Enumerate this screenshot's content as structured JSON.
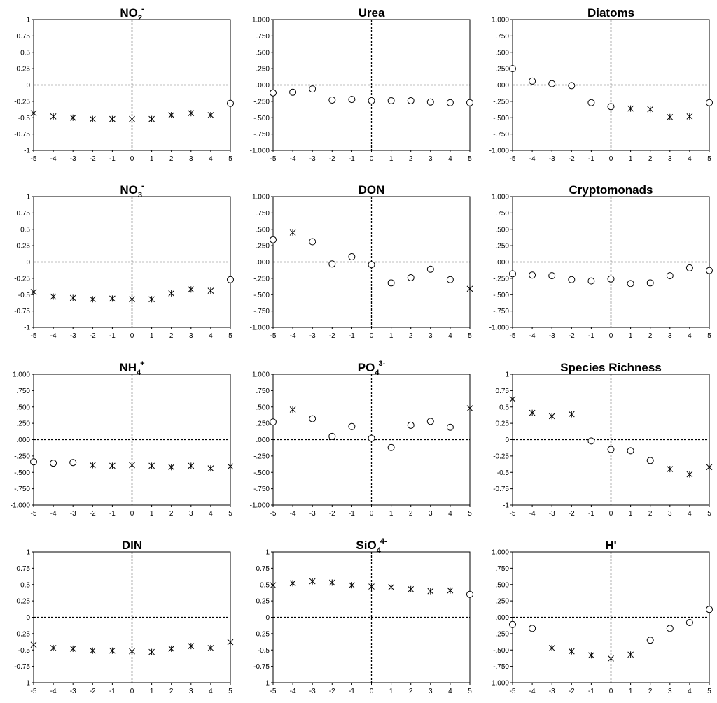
{
  "chart_data": [
    {
      "type": "scatter",
      "title": "NO",
      "title_sub": "2",
      "title_sup": "-",
      "ylim": [
        -1,
        1
      ],
      "yticks": [
        "1",
        "0.75",
        "0.5",
        "0.25",
        "0",
        "-0.25",
        "-0.5",
        "-0.75",
        "-1"
      ],
      "xticks": [
        "-5",
        "-4",
        "-3",
        "-2",
        "-1",
        "0",
        "1",
        "2",
        "3",
        "4",
        "5"
      ],
      "points": [
        {
          "x": -5,
          "y": -0.43,
          "m": "x"
        },
        {
          "x": -4,
          "y": -0.48,
          "m": "x"
        },
        {
          "x": -3,
          "y": -0.5,
          "m": "x"
        },
        {
          "x": -2,
          "y": -0.52,
          "m": "x"
        },
        {
          "x": -1,
          "y": -0.52,
          "m": "x"
        },
        {
          "x": 0,
          "y": -0.52,
          "m": "x"
        },
        {
          "x": 1,
          "y": -0.52,
          "m": "x"
        },
        {
          "x": 2,
          "y": -0.46,
          "m": "x"
        },
        {
          "x": 3,
          "y": -0.43,
          "m": "x"
        },
        {
          "x": 4,
          "y": -0.46,
          "m": "x"
        },
        {
          "x": 5,
          "y": -0.28,
          "m": "o"
        }
      ]
    },
    {
      "type": "scatter",
      "title": "Urea",
      "title_sub": "",
      "title_sup": "",
      "ylim": [
        -1,
        1
      ],
      "yticks": [
        "1.000",
        ".750",
        ".500",
        ".250",
        ".000",
        "-.250",
        "-.500",
        "-.750",
        "-1.000"
      ],
      "xticks": [
        "-5",
        "-4",
        "-3",
        "-2",
        "-1",
        "0",
        "1",
        "2",
        "3",
        "4",
        "5"
      ],
      "points": [
        {
          "x": -5,
          "y": -0.12,
          "m": "o"
        },
        {
          "x": -4,
          "y": -0.11,
          "m": "o"
        },
        {
          "x": -3,
          "y": -0.06,
          "m": "o"
        },
        {
          "x": -2,
          "y": -0.23,
          "m": "o"
        },
        {
          "x": -1,
          "y": -0.22,
          "m": "o"
        },
        {
          "x": 0,
          "y": -0.24,
          "m": "o"
        },
        {
          "x": 1,
          "y": -0.24,
          "m": "o"
        },
        {
          "x": 2,
          "y": -0.24,
          "m": "o"
        },
        {
          "x": 3,
          "y": -0.26,
          "m": "o"
        },
        {
          "x": 4,
          "y": -0.27,
          "m": "o"
        },
        {
          "x": 5,
          "y": -0.27,
          "m": "o"
        }
      ]
    },
    {
      "type": "scatter",
      "title": "Diatoms",
      "title_sub": "",
      "title_sup": "",
      "ylim": [
        -1,
        1
      ],
      "yticks": [
        "1.000",
        ".750",
        ".500",
        ".250",
        ".000",
        "-.250",
        "-.500",
        "-.750",
        "-1.000"
      ],
      "xticks": [
        "-5",
        "-4",
        "-3",
        "-2",
        "-1",
        "0",
        "1",
        "2",
        "3",
        "4",
        "5"
      ],
      "points": [
        {
          "x": -5,
          "y": 0.25,
          "m": "o"
        },
        {
          "x": -4,
          "y": 0.06,
          "m": "o"
        },
        {
          "x": -3,
          "y": 0.02,
          "m": "o"
        },
        {
          "x": -2,
          "y": -0.01,
          "m": "o"
        },
        {
          "x": -1,
          "y": -0.27,
          "m": "o"
        },
        {
          "x": 0,
          "y": -0.33,
          "m": "o"
        },
        {
          "x": 1,
          "y": -0.36,
          "m": "x"
        },
        {
          "x": 2,
          "y": -0.37,
          "m": "x"
        },
        {
          "x": 3,
          "y": -0.49,
          "m": "x"
        },
        {
          "x": 4,
          "y": -0.48,
          "m": "x"
        },
        {
          "x": 5,
          "y": -0.27,
          "m": "o"
        }
      ]
    },
    {
      "type": "scatter",
      "title": "NO",
      "title_sub": "3",
      "title_sup": "-",
      "ylim": [
        -1,
        1
      ],
      "yticks": [
        "1",
        "0.75",
        "0.5",
        "0.25",
        "0",
        "-0.25",
        "-0.5",
        "-0.75",
        "-1"
      ],
      "xticks": [
        "-5",
        "-4",
        "-3",
        "-2",
        "-1",
        "0",
        "1",
        "2",
        "3",
        "4",
        "5"
      ],
      "points": [
        {
          "x": -5,
          "y": -0.46,
          "m": "x"
        },
        {
          "x": -4,
          "y": -0.53,
          "m": "x"
        },
        {
          "x": -3,
          "y": -0.55,
          "m": "x"
        },
        {
          "x": -2,
          "y": -0.57,
          "m": "x"
        },
        {
          "x": -1,
          "y": -0.56,
          "m": "x"
        },
        {
          "x": 0,
          "y": -0.57,
          "m": "x"
        },
        {
          "x": 1,
          "y": -0.57,
          "m": "x"
        },
        {
          "x": 2,
          "y": -0.48,
          "m": "x"
        },
        {
          "x": 3,
          "y": -0.42,
          "m": "x"
        },
        {
          "x": 4,
          "y": -0.44,
          "m": "x"
        },
        {
          "x": 5,
          "y": -0.27,
          "m": "o"
        }
      ]
    },
    {
      "type": "scatter",
      "title": "DON",
      "title_sub": "",
      "title_sup": "",
      "ylim": [
        -1,
        1
      ],
      "yticks": [
        "1.000",
        ".750",
        ".500",
        ".250",
        ".000",
        "-.250",
        "-.500",
        "-.750",
        "-1.000"
      ],
      "xticks": [
        "-5",
        "-4",
        "-3",
        "-2",
        "-1",
        "0",
        "1",
        "2",
        "3",
        "4",
        "5"
      ],
      "points": [
        {
          "x": -5,
          "y": 0.34,
          "m": "o"
        },
        {
          "x": -4,
          "y": 0.45,
          "m": "x"
        },
        {
          "x": -3,
          "y": 0.31,
          "m": "o"
        },
        {
          "x": -2,
          "y": -0.03,
          "m": "o"
        },
        {
          "x": -1,
          "y": 0.08,
          "m": "o"
        },
        {
          "x": 0,
          "y": -0.04,
          "m": "o"
        },
        {
          "x": 1,
          "y": -0.32,
          "m": "o"
        },
        {
          "x": 2,
          "y": -0.24,
          "m": "o"
        },
        {
          "x": 3,
          "y": -0.11,
          "m": "o"
        },
        {
          "x": 4,
          "y": -0.27,
          "m": "o"
        },
        {
          "x": 5,
          "y": -0.41,
          "m": "x"
        }
      ]
    },
    {
      "type": "scatter",
      "title": "Cryptomonads",
      "title_sub": "",
      "title_sup": "",
      "ylim": [
        -1,
        1
      ],
      "yticks": [
        "1.000",
        ".750",
        ".500",
        ".250",
        ".000",
        "-.250",
        "-.500",
        "-.750",
        "-1.000"
      ],
      "xticks": [
        "-5",
        "-4",
        "-3",
        "-2",
        "-1",
        "0",
        "1",
        "2",
        "3",
        "4",
        "5"
      ],
      "points": [
        {
          "x": -5,
          "y": -0.18,
          "m": "o"
        },
        {
          "x": -4,
          "y": -0.2,
          "m": "o"
        },
        {
          "x": -3,
          "y": -0.21,
          "m": "o"
        },
        {
          "x": -2,
          "y": -0.27,
          "m": "o"
        },
        {
          "x": -1,
          "y": -0.29,
          "m": "o"
        },
        {
          "x": 0,
          "y": -0.26,
          "m": "o"
        },
        {
          "x": 1,
          "y": -0.33,
          "m": "o"
        },
        {
          "x": 2,
          "y": -0.32,
          "m": "o"
        },
        {
          "x": 3,
          "y": -0.21,
          "m": "o"
        },
        {
          "x": 4,
          "y": -0.09,
          "m": "o"
        },
        {
          "x": 5,
          "y": -0.13,
          "m": "o"
        }
      ]
    },
    {
      "type": "scatter",
      "title": "NH",
      "title_sub": "4",
      "title_sup": "+",
      "ylim": [
        -1,
        1
      ],
      "yticks": [
        "1.000",
        ".750",
        ".500",
        ".250",
        ".000",
        "-.250",
        "-.500",
        "-.750",
        "-1.000"
      ],
      "xticks": [
        "-5",
        "-4",
        "-3",
        "-2",
        "-1",
        "0",
        "1",
        "2",
        "3",
        "4",
        "5"
      ],
      "points": [
        {
          "x": -5,
          "y": -0.34,
          "m": "o"
        },
        {
          "x": -4,
          "y": -0.36,
          "m": "o"
        },
        {
          "x": -3,
          "y": -0.35,
          "m": "o"
        },
        {
          "x": -2,
          "y": -0.39,
          "m": "x"
        },
        {
          "x": -1,
          "y": -0.4,
          "m": "x"
        },
        {
          "x": 0,
          "y": -0.39,
          "m": "x"
        },
        {
          "x": 1,
          "y": -0.4,
          "m": "x"
        },
        {
          "x": 2,
          "y": -0.42,
          "m": "x"
        },
        {
          "x": 3,
          "y": -0.4,
          "m": "x"
        },
        {
          "x": 4,
          "y": -0.44,
          "m": "x"
        },
        {
          "x": 5,
          "y": -0.41,
          "m": "x"
        }
      ]
    },
    {
      "type": "scatter",
      "title": "PO",
      "title_sub": "4",
      "title_sup": "3-",
      "ylim": [
        -1,
        1
      ],
      "yticks": [
        "1.000",
        ".750",
        ".500",
        ".250",
        ".000",
        "-.250",
        "-.500",
        "-.750",
        "-1.000"
      ],
      "xticks": [
        "-5",
        "-4",
        "-3",
        "-2",
        "-1",
        "0",
        "1",
        "2",
        "3",
        "4",
        "5"
      ],
      "points": [
        {
          "x": -5,
          "y": 0.27,
          "m": "o"
        },
        {
          "x": -4,
          "y": 0.46,
          "m": "x"
        },
        {
          "x": -3,
          "y": 0.32,
          "m": "o"
        },
        {
          "x": -2,
          "y": 0.05,
          "m": "o"
        },
        {
          "x": -1,
          "y": 0.2,
          "m": "o"
        },
        {
          "x": 0,
          "y": 0.02,
          "m": "o"
        },
        {
          "x": 1,
          "y": -0.12,
          "m": "o"
        },
        {
          "x": 2,
          "y": 0.22,
          "m": "o"
        },
        {
          "x": 3,
          "y": 0.28,
          "m": "o"
        },
        {
          "x": 4,
          "y": 0.19,
          "m": "o"
        },
        {
          "x": 5,
          "y": 0.48,
          "m": "x"
        }
      ]
    },
    {
      "type": "scatter",
      "title": "Species Richness",
      "title_sub": "",
      "title_sup": "",
      "ylim": [
        -1,
        1
      ],
      "yticks": [
        "1",
        "0.75",
        "0.5",
        "0.25",
        "0",
        "-0.25",
        "-0.5",
        "-0.75",
        "-1"
      ],
      "xticks": [
        "-5",
        "-4",
        "-3",
        "-2",
        "-1",
        "0",
        "1",
        "2",
        "3",
        "4",
        "5"
      ],
      "points": [
        {
          "x": -5,
          "y": 0.62,
          "m": "x"
        },
        {
          "x": -4,
          "y": 0.41,
          "m": "x"
        },
        {
          "x": -3,
          "y": 0.36,
          "m": "x"
        },
        {
          "x": -2,
          "y": 0.39,
          "m": "x"
        },
        {
          "x": -1,
          "y": -0.02,
          "m": "o"
        },
        {
          "x": 0,
          "y": -0.15,
          "m": "o"
        },
        {
          "x": 1,
          "y": -0.17,
          "m": "o"
        },
        {
          "x": 2,
          "y": -0.32,
          "m": "o"
        },
        {
          "x": 3,
          "y": -0.45,
          "m": "x"
        },
        {
          "x": 4,
          "y": -0.53,
          "m": "x"
        },
        {
          "x": 5,
          "y": -0.42,
          "m": "x"
        }
      ]
    },
    {
      "type": "scatter",
      "title": "DIN",
      "title_sub": "",
      "title_sup": "",
      "ylim": [
        -1,
        1
      ],
      "yticks": [
        "1",
        "0.75",
        "0.5",
        "0.25",
        "0",
        "-0.25",
        "-0.5",
        "-0.75",
        "-1"
      ],
      "xticks": [
        "-5",
        "-4",
        "-3",
        "-2",
        "-1",
        "0",
        "1",
        "2",
        "3",
        "4",
        "5"
      ],
      "points": [
        {
          "x": -5,
          "y": -0.42,
          "m": "x"
        },
        {
          "x": -4,
          "y": -0.47,
          "m": "x"
        },
        {
          "x": -3,
          "y": -0.48,
          "m": "x"
        },
        {
          "x": -2,
          "y": -0.51,
          "m": "x"
        },
        {
          "x": -1,
          "y": -0.51,
          "m": "x"
        },
        {
          "x": 0,
          "y": -0.52,
          "m": "x"
        },
        {
          "x": 1,
          "y": -0.53,
          "m": "x"
        },
        {
          "x": 2,
          "y": -0.48,
          "m": "x"
        },
        {
          "x": 3,
          "y": -0.44,
          "m": "x"
        },
        {
          "x": 4,
          "y": -0.47,
          "m": "x"
        },
        {
          "x": 5,
          "y": -0.38,
          "m": "x"
        }
      ]
    },
    {
      "type": "scatter",
      "title": "SiO",
      "title_sub": "4",
      "title_sup": "4-",
      "ylim": [
        -1,
        1
      ],
      "yticks": [
        "1",
        "0.75",
        "0.5",
        "0.25",
        "0",
        "-0.25",
        "-0.5",
        "-0.75",
        "-1"
      ],
      "xticks": [
        "-5",
        "-4",
        "-3",
        "-2",
        "-1",
        "0",
        "1",
        "2",
        "3",
        "4",
        "5"
      ],
      "points": [
        {
          "x": -5,
          "y": 0.49,
          "m": "x"
        },
        {
          "x": -4,
          "y": 0.52,
          "m": "x"
        },
        {
          "x": -3,
          "y": 0.55,
          "m": "x"
        },
        {
          "x": -2,
          "y": 0.53,
          "m": "x"
        },
        {
          "x": -1,
          "y": 0.49,
          "m": "x"
        },
        {
          "x": 0,
          "y": 0.47,
          "m": "x"
        },
        {
          "x": 1,
          "y": 0.46,
          "m": "x"
        },
        {
          "x": 2,
          "y": 0.43,
          "m": "x"
        },
        {
          "x": 3,
          "y": 0.4,
          "m": "x"
        },
        {
          "x": 4,
          "y": 0.41,
          "m": "x"
        },
        {
          "x": 5,
          "y": 0.35,
          "m": "o"
        }
      ]
    },
    {
      "type": "scatter",
      "title": "H'",
      "title_sub": "",
      "title_sup": "",
      "ylim": [
        -1,
        1
      ],
      "yticks": [
        "1.000",
        ".750",
        ".500",
        ".250",
        ".000",
        "-.250",
        "-.500",
        "-.750",
        "-1.000"
      ],
      "xticks": [
        "-5",
        "-4",
        "-3",
        "-2",
        "-1",
        "0",
        "1",
        "2",
        "3",
        "4",
        "5"
      ],
      "points": [
        {
          "x": -5,
          "y": -0.11,
          "m": "o"
        },
        {
          "x": -4,
          "y": -0.17,
          "m": "o"
        },
        {
          "x": -3,
          "y": -0.47,
          "m": "x"
        },
        {
          "x": -2,
          "y": -0.52,
          "m": "x"
        },
        {
          "x": -1,
          "y": -0.58,
          "m": "x"
        },
        {
          "x": 0,
          "y": -0.63,
          "m": "x"
        },
        {
          "x": 1,
          "y": -0.57,
          "m": "x"
        },
        {
          "x": 2,
          "y": -0.35,
          "m": "o"
        },
        {
          "x": 3,
          "y": -0.17,
          "m": "o"
        },
        {
          "x": 4,
          "y": -0.08,
          "m": "o"
        },
        {
          "x": 5,
          "y": 0.12,
          "m": "o"
        }
      ]
    }
  ]
}
